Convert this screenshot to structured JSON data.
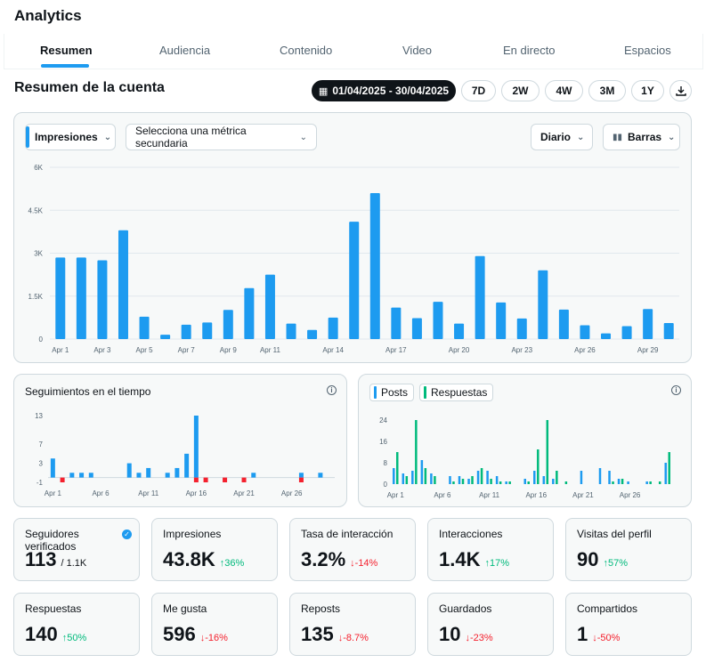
{
  "app": {
    "title": "Analytics"
  },
  "tabs": [
    {
      "label": "Resumen",
      "active": true
    },
    {
      "label": "Audiencia"
    },
    {
      "label": "Contenido"
    },
    {
      "label": "Video"
    },
    {
      "label": "En directo"
    },
    {
      "label": "Espacios"
    }
  ],
  "section": {
    "title": "Resumen de la cuenta"
  },
  "range": {
    "date": "01/04/2025 - 30/04/2025",
    "options": [
      "7D",
      "2W",
      "4W",
      "3M",
      "1Y"
    ]
  },
  "controls": {
    "primary_metric": "Impresiones",
    "secondary_metric": "Selecciona una métrica secundaria",
    "interval": "Diario",
    "chart_type": "Barras"
  },
  "colors": {
    "blue": "#1d9bf0",
    "green": "#00ba7c",
    "red": "#f4212e"
  },
  "chart_data": [
    {
      "type": "bar",
      "categories": [
        "Apr 1",
        "Apr 2",
        "Apr 3",
        "Apr 4",
        "Apr 5",
        "Apr 6",
        "Apr 7",
        "Apr 8",
        "Apr 9",
        "Apr 10",
        "Apr 11",
        "Apr 12",
        "Apr 13",
        "Apr 14",
        "Apr 15",
        "Apr 16",
        "Apr 17",
        "Apr 18",
        "Apr 19",
        "Apr 20",
        "Apr 21",
        "Apr 22",
        "Apr 23",
        "Apr 24",
        "Apr 25",
        "Apr 26",
        "Apr 27",
        "Apr 28",
        "Apr 29",
        "Apr 30"
      ],
      "x_tick_labels": [
        "Apr 1",
        "Apr 3",
        "Apr 5",
        "Apr 7",
        "Apr 9",
        "Apr 11",
        "Apr 14",
        "Apr 17",
        "Apr 20",
        "Apr 23",
        "Apr 26",
        "Apr 29"
      ],
      "x_tick_index": [
        0,
        2,
        4,
        6,
        8,
        10,
        13,
        16,
        19,
        22,
        25,
        28
      ],
      "y_ticks": [
        0,
        1500,
        3000,
        4500,
        6000
      ],
      "y_tick_labels": [
        "0",
        "1.5K",
        "3K",
        "4.5K",
        "6K"
      ],
      "ylim": [
        0,
        6000
      ],
      "values": [
        2850,
        2850,
        2750,
        3800,
        780,
        150,
        500,
        580,
        1020,
        1780,
        2250,
        540,
        320,
        750,
        4100,
        5100,
        1100,
        730,
        1300,
        540,
        2900,
        1280,
        720,
        2400,
        1030,
        480,
        200,
        450,
        1050,
        560
      ],
      "grid": true
    },
    {
      "type": "bar",
      "title": "Seguimientos en el tiempo",
      "categories": [
        "Apr 1",
        "Apr 2",
        "Apr 3",
        "Apr 4",
        "Apr 5",
        "Apr 6",
        "Apr 7",
        "Apr 8",
        "Apr 9",
        "Apr 10",
        "Apr 11",
        "Apr 12",
        "Apr 13",
        "Apr 14",
        "Apr 15",
        "Apr 16",
        "Apr 17",
        "Apr 18",
        "Apr 19",
        "Apr 20",
        "Apr 21",
        "Apr 22",
        "Apr 23",
        "Apr 24",
        "Apr 25",
        "Apr 26",
        "Apr 27",
        "Apr 28",
        "Apr 29",
        "Apr 30"
      ],
      "x_tick_labels": [
        "Apr 1",
        "Apr 6",
        "Apr 11",
        "Apr 16",
        "Apr 21",
        "Apr 26"
      ],
      "x_tick_index": [
        0,
        5,
        10,
        15,
        20,
        25
      ],
      "y_ticks": [
        -1,
        3,
        7,
        13
      ],
      "ylim": [
        -1,
        13
      ],
      "series": [
        {
          "color": "blue",
          "values": [
            4,
            0,
            1,
            1,
            1,
            0,
            0,
            0,
            3,
            1,
            2,
            0,
            1,
            2,
            5,
            13,
            0,
            0,
            0,
            0,
            0,
            1,
            0,
            0,
            0,
            0,
            1,
            0,
            1,
            0
          ]
        },
        {
          "color": "red",
          "values": [
            0,
            -1,
            0,
            0,
            0,
            0,
            0,
            0,
            0,
            0,
            0,
            0,
            0,
            0,
            0,
            -1,
            -1,
            0,
            -1,
            0,
            -1,
            0,
            0,
            0,
            0,
            0,
            -1,
            0,
            0,
            0
          ]
        }
      ]
    },
    {
      "type": "bar",
      "categories": [
        "Apr 1",
        "Apr 2",
        "Apr 3",
        "Apr 4",
        "Apr 5",
        "Apr 6",
        "Apr 7",
        "Apr 8",
        "Apr 9",
        "Apr 10",
        "Apr 11",
        "Apr 12",
        "Apr 13",
        "Apr 14",
        "Apr 15",
        "Apr 16",
        "Apr 17",
        "Apr 18",
        "Apr 19",
        "Apr 20",
        "Apr 21",
        "Apr 22",
        "Apr 23",
        "Apr 24",
        "Apr 25",
        "Apr 26",
        "Apr 27",
        "Apr 28",
        "Apr 29",
        "Apr 30"
      ],
      "x_tick_labels": [
        "Apr 1",
        "Apr 6",
        "Apr 11",
        "Apr 16",
        "Apr 21",
        "Apr 26"
      ],
      "x_tick_index": [
        0,
        5,
        10,
        15,
        20,
        25
      ],
      "y_ticks": [
        0,
        8,
        16,
        24
      ],
      "ylim": [
        0,
        24
      ],
      "series": [
        {
          "name": "Posts",
          "color": "blue",
          "values": [
            6,
            4,
            5,
            9,
            4,
            0,
            3,
            3,
            2,
            5,
            5,
            3,
            1,
            0,
            2,
            5,
            3,
            2,
            0,
            0,
            5,
            0,
            6,
            5,
            2,
            1,
            0,
            1,
            0,
            8
          ]
        },
        {
          "name": "Respuestas",
          "color": "green",
          "values": [
            12,
            3,
            24,
            6,
            3,
            0,
            1,
            2,
            3,
            6,
            2,
            1,
            1,
            0,
            1,
            13,
            24,
            5,
            1,
            0,
            0,
            0,
            0,
            1,
            2,
            0,
            0,
            1,
            1,
            12
          ]
        }
      ]
    }
  ],
  "stats": [
    {
      "label": "Seguidores verificados",
      "value": "113",
      "sub": "/ 1.1K",
      "verified": true
    },
    {
      "label": "Impresiones",
      "value": "43.8K",
      "change": "↑36%",
      "dir": "up"
    },
    {
      "label": "Tasa de interacción",
      "value": "3.2%",
      "change": "↓-14%",
      "dir": "down"
    },
    {
      "label": "Interacciones",
      "value": "1.4K",
      "change": "↑17%",
      "dir": "up"
    },
    {
      "label": "Visitas del perfil",
      "value": "90",
      "change": "↑57%",
      "dir": "up"
    },
    {
      "label": "Respuestas",
      "value": "140",
      "change": "↑50%",
      "dir": "up"
    },
    {
      "label": "Me gusta",
      "value": "596",
      "change": "↓-16%",
      "dir": "down"
    },
    {
      "label": "Reposts",
      "value": "135",
      "change": "↓-8.7%",
      "dir": "down"
    },
    {
      "label": "Guardados",
      "value": "10",
      "change": "↓-23%",
      "dir": "down"
    },
    {
      "label": "Compartidos",
      "value": "1",
      "change": "↓-50%",
      "dir": "down"
    }
  ]
}
